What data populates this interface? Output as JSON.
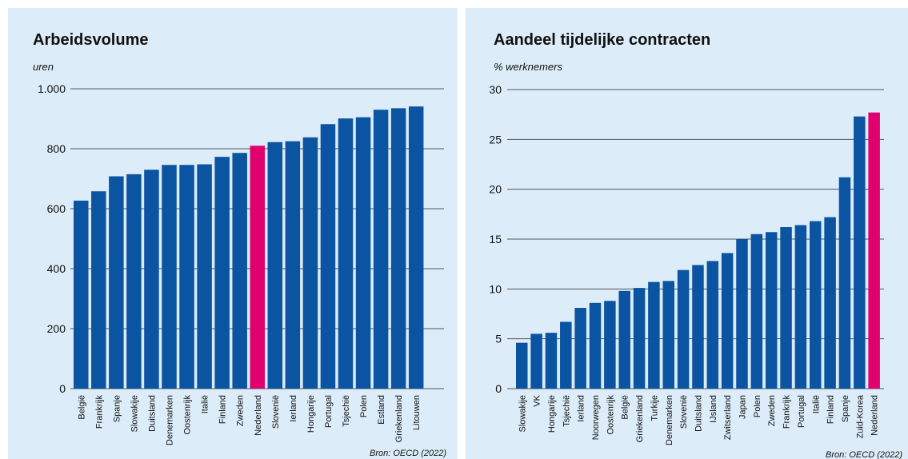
{
  "chart_data": [
    {
      "type": "bar",
      "title": "Arbeidsvolume",
      "ylabel": "uren",
      "source": "Bron: OECD (2022)",
      "ylim": [
        0,
        1000
      ],
      "yticks": [
        0,
        200,
        400,
        600,
        800,
        1000
      ],
      "ytick_labels": [
        "0",
        "200",
        "400",
        "600",
        "800",
        "1.000"
      ],
      "categories": [
        "België",
        "Frankrijk",
        "Spanje",
        "Slowakije",
        "Duitsland",
        "Denemarken",
        "Oostenrijk",
        "Italië",
        "Finland",
        "Zweden",
        "Nederland",
        "Slovenië",
        "Ierland",
        "Hongarije",
        "Portugal",
        "Tsjechië",
        "Polen",
        "Estland",
        "Griekenland",
        "Litouwen"
      ],
      "values": [
        627,
        658,
        708,
        715,
        730,
        746,
        746,
        748,
        773,
        786,
        810,
        822,
        825,
        838,
        882,
        901,
        905,
        930,
        935,
        941
      ],
      "highlight": "Nederland",
      "colors": {
        "bar": "#0a54a2",
        "highlight": "#e0006e",
        "background": "#dcedf9"
      },
      "grid": true
    },
    {
      "type": "bar",
      "title": "Aandeel tijdelijke contracten",
      "ylabel": "% werknemers",
      "source": "Bron: OECD (2022)",
      "ylim": [
        0,
        30
      ],
      "yticks": [
        0,
        5,
        10,
        15,
        20,
        25,
        30
      ],
      "ytick_labels": [
        "0",
        "5",
        "10",
        "15",
        "20",
        "25",
        "30"
      ],
      "categories": [
        "Slowakije",
        "VK",
        "Hongarije",
        "Tsjechië",
        "Ierland",
        "Noorwegen",
        "Oostenrijk",
        "België",
        "Griekenland",
        "Turkije",
        "Denemarken",
        "Slovenië",
        "Duitsland",
        "IJsland",
        "Zwitserland",
        "Japan",
        "Polen",
        "Zweden",
        "Frankrijk",
        "Portugal",
        "Italië",
        "Finland",
        "Spanje",
        "Zuid-Korea",
        "Nederland"
      ],
      "values": [
        4.6,
        5.5,
        5.6,
        6.7,
        8.1,
        8.6,
        8.8,
        9.8,
        10.1,
        10.7,
        10.8,
        11.9,
        12.4,
        12.8,
        13.6,
        15.0,
        15.5,
        15.7,
        16.2,
        16.4,
        16.8,
        17.2,
        21.2,
        27.3,
        27.7
      ],
      "highlight": "Nederland",
      "colors": {
        "bar": "#0a54a2",
        "highlight": "#e0006e",
        "background": "#dcedf9"
      },
      "grid": true
    }
  ]
}
